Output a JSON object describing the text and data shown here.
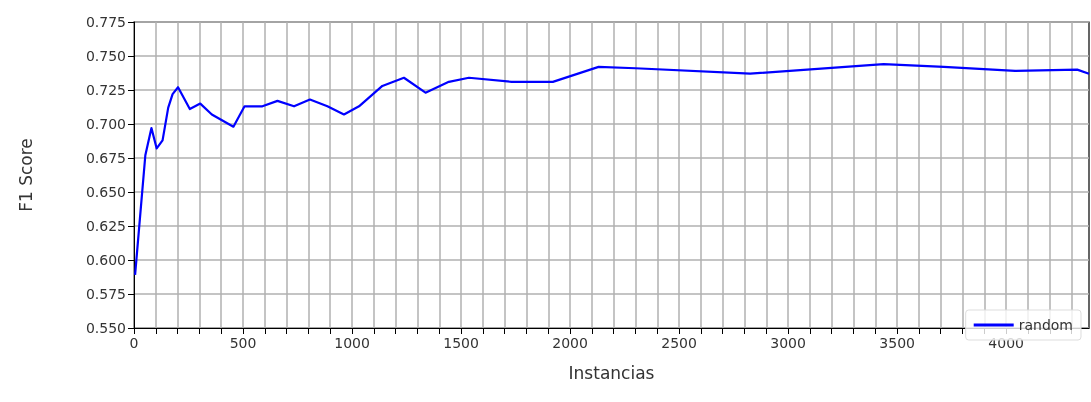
{
  "chart_data": {
    "type": "line",
    "xlabel": "Instancias",
    "ylabel": "F1 Score",
    "x": [
      5,
      52,
      80,
      104,
      131,
      157,
      177,
      202,
      256,
      304,
      357,
      456,
      507,
      589,
      658,
      734,
      807,
      887,
      963,
      1032,
      1139,
      1238,
      1337,
      1444,
      1536,
      1731,
      1921,
      2131,
      2300,
      2826,
      3438,
      3714,
      4041,
      4326,
      4380
    ],
    "series": [
      {
        "name": "random",
        "color": "#0000ff",
        "values": [
          0.589,
          0.677,
          0.697,
          0.682,
          0.688,
          0.712,
          0.722,
          0.727,
          0.711,
          0.715,
          0.707,
          0.698,
          0.713,
          0.713,
          0.717,
          0.713,
          0.718,
          0.713,
          0.707,
          0.713,
          0.728,
          0.734,
          0.723,
          0.731,
          0.734,
          0.731,
          0.731,
          0.742,
          0.741,
          0.737,
          0.744,
          0.742,
          0.739,
          0.74,
          0.737
        ]
      }
    ],
    "xlim": [
      0,
      4380
    ],
    "xticks": [
      0,
      {
        "value": 100,
        "label": null
      },
      {
        "value": 200,
        "label": null
      },
      {
        "value": 300,
        "label": null
      },
      {
        "value": 400,
        "label": null
      },
      500,
      {
        "value": 600,
        "label": null
      },
      {
        "value": 700,
        "label": null
      },
      {
        "value": 800,
        "label": null
      },
      {
        "value": 900,
        "label": null
      },
      1000,
      {
        "value": 1100,
        "label": null
      },
      {
        "value": 1200,
        "label": null
      },
      {
        "value": 1300,
        "label": null
      },
      {
        "value": 1400,
        "label": null
      },
      1500,
      {
        "value": 1600,
        "label": null
      },
      {
        "value": 1700,
        "label": null
      },
      {
        "value": 1800,
        "label": null
      },
      {
        "value": 1900,
        "label": null
      },
      2000,
      {
        "value": 2100,
        "label": null
      },
      {
        "value": 2200,
        "label": null
      },
      {
        "value": 2300,
        "label": null
      },
      {
        "value": 2400,
        "label": null
      },
      2500,
      {
        "value": 2600,
        "label": null
      },
      {
        "value": 2700,
        "label": null
      },
      {
        "value": 2800,
        "label": null
      },
      {
        "value": 2900,
        "label": null
      },
      3000,
      {
        "value": 3100,
        "label": null
      },
      {
        "value": 3200,
        "label": null
      },
      {
        "value": 3300,
        "label": null
      },
      {
        "value": 3400,
        "label": null
      },
      3500,
      {
        "value": 3600,
        "label": null
      },
      {
        "value": 3700,
        "label": null
      },
      {
        "value": 3800,
        "label": null
      },
      {
        "value": 3900,
        "label": null
      },
      4000,
      {
        "value": 4100,
        "label": null
      },
      {
        "value": 4200,
        "label": null
      },
      {
        "value": 4300,
        "label": null
      }
    ],
    "ylim": [
      0.55,
      0.775
    ],
    "yticks": [
      {
        "value": 0.55,
        "label": "0.550"
      },
      {
        "value": 0.575,
        "label": "0.575"
      },
      {
        "value": 0.6,
        "label": "0.600"
      },
      {
        "value": 0.625,
        "label": "0.625"
      },
      {
        "value": 0.65,
        "label": "0.650"
      },
      {
        "value": 0.675,
        "label": "0.675"
      },
      {
        "value": 0.7,
        "label": "0.700"
      },
      {
        "value": 0.725,
        "label": "0.725"
      },
      {
        "value": 0.75,
        "label": "0.750"
      },
      {
        "value": 0.775,
        "label": "0.775"
      }
    ],
    "grid": true,
    "legend": "bottom right",
    "marker": "none",
    "line_style": "solid"
  }
}
